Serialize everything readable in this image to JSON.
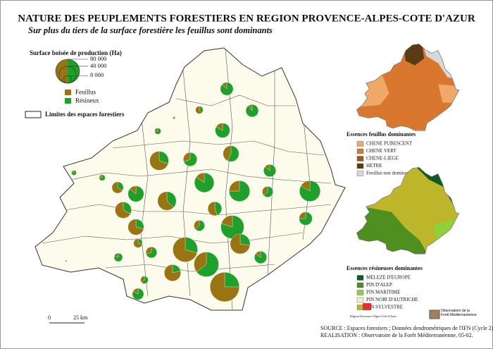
{
  "title": "NATURE DES PEUPLEMENTS FORESTIERS EN REGION PROVENCE-ALPES-COTE D'AZUR",
  "subtitle": "Sur plus du tiers de la surface forestière les feuillus sont dominants",
  "size_legend": {
    "title": "Surface boisée de production (Ha)",
    "ticks": [
      {
        "value": 80000,
        "label": "80 000"
      },
      {
        "value": 40000,
        "label": "40 000"
      },
      {
        "value": 8000,
        "label": "8 000"
      }
    ],
    "feuillus": {
      "label": "Feuillus",
      "color": "#9a7412"
    },
    "resineux": {
      "label": "Résineux",
      "color": "#1fa02a"
    },
    "limits": "Limites des espaces forestiers"
  },
  "pies": [
    {
      "feuillus": 3000,
      "resineux": 20000
    },
    {
      "feuillus": 5000,
      "resineux": 3000
    },
    {
      "feuillus": 2000,
      "resineux": 20000
    },
    {
      "feuillus": 200,
      "resineux": 600
    },
    {
      "feuillus": 1500,
      "resineux": 4000
    },
    {
      "feuillus": 5000,
      "resineux": 25000
    },
    {
      "feuillus": 15000,
      "resineux": 20000
    },
    {
      "feuillus": 35000,
      "resineux": 15000
    },
    {
      "feuillus": 8000,
      "resineux": 18000
    },
    {
      "feuillus": 1000,
      "resineux": 4000
    },
    {
      "feuillus": 500,
      "resineux": 3000
    },
    {
      "feuillus": 12000,
      "resineux": 6000
    },
    {
      "feuillus": 5000,
      "resineux": 30000
    },
    {
      "feuillus": 25000,
      "resineux": 12000
    },
    {
      "feuillus": 30000,
      "resineux": 18000
    },
    {
      "feuillus": 8000,
      "resineux": 45000
    },
    {
      "feuillus": 15000,
      "resineux": 45000
    },
    {
      "feuillus": 3000,
      "resineux": 18000
    },
    {
      "feuillus": 6000,
      "resineux": 10000
    },
    {
      "feuillus": 10000,
      "resineux": 50000
    },
    {
      "feuillus": 6000,
      "resineux": 18000
    },
    {
      "feuillus": 15000,
      "resineux": 12000
    },
    {
      "feuillus": 25000,
      "resineux": 10000
    },
    {
      "feuillus": 6000,
      "resineux": 10000
    },
    {
      "feuillus": 15000,
      "resineux": 60000
    },
    {
      "feuillus": 8000,
      "resineux": 3000
    },
    {
      "feuillus": 5000,
      "resineux": 12000
    },
    {
      "feuillus": 60000,
      "resineux": 25000
    },
    {
      "feuillus": 40000,
      "resineux": 15000
    },
    {
      "feuillus": 3000,
      "resineux": 18000
    },
    {
      "feuillus": 2000,
      "resineux": 8000
    },
    {
      "feuillus": 30000,
      "resineux": 55000
    },
    {
      "feuillus": 30000,
      "resineux": 8000
    },
    {
      "feuillus": 3000,
      "resineux": 5000
    },
    {
      "feuillus": 3000,
      "resineux": 15000
    },
    {
      "feuillus": 90000,
      "resineux": 30000
    },
    {
      "feuillus": 300,
      "resineux": 100
    }
  ],
  "scale_bar": {
    "start": "0",
    "end": "25 km"
  },
  "feuillus_map": {
    "title": "Essences feuillus dominantes",
    "items": [
      {
        "label": "CHENE PUBESCENT",
        "color": "#f0a868"
      },
      {
        "label": "CHENE VERT",
        "color": "#d9772e"
      },
      {
        "label": "CHENE-LIEGE",
        "color": "#9c5a1c"
      },
      {
        "label": "HETRE",
        "color": "#5a3c14"
      },
      {
        "label": "Feuillus non dominants",
        "color": "#d8d8d8"
      }
    ]
  },
  "resineux_map": {
    "title": "Essences résineuses dominantes",
    "items": [
      {
        "label": "MELEZE D'EUROPE",
        "color": "#0f5a26"
      },
      {
        "label": "PIN D'ALEP",
        "color": "#4f8f1f"
      },
      {
        "label": "PIN MARITIME",
        "color": "#8fd13a"
      },
      {
        "label": "PIN NOIR D'AUTRICHE",
        "color": "#e6f5c8"
      },
      {
        "label": "PIN SYLVESTRE",
        "color": "#bdb52a"
      }
    ]
  },
  "logos": {
    "region": "Région Provence-Alpes-Côte d'Azur",
    "observatoire": "Observatoire de la Forêt Méditerranéenne"
  },
  "source": "SOURCE : Espaces forestiers ; Données dendrométriques de l'IFN (Cycle 2).",
  "realisation": "REALISATION : Observatoire de la Forêt Méditerranéenne, 05-02."
}
